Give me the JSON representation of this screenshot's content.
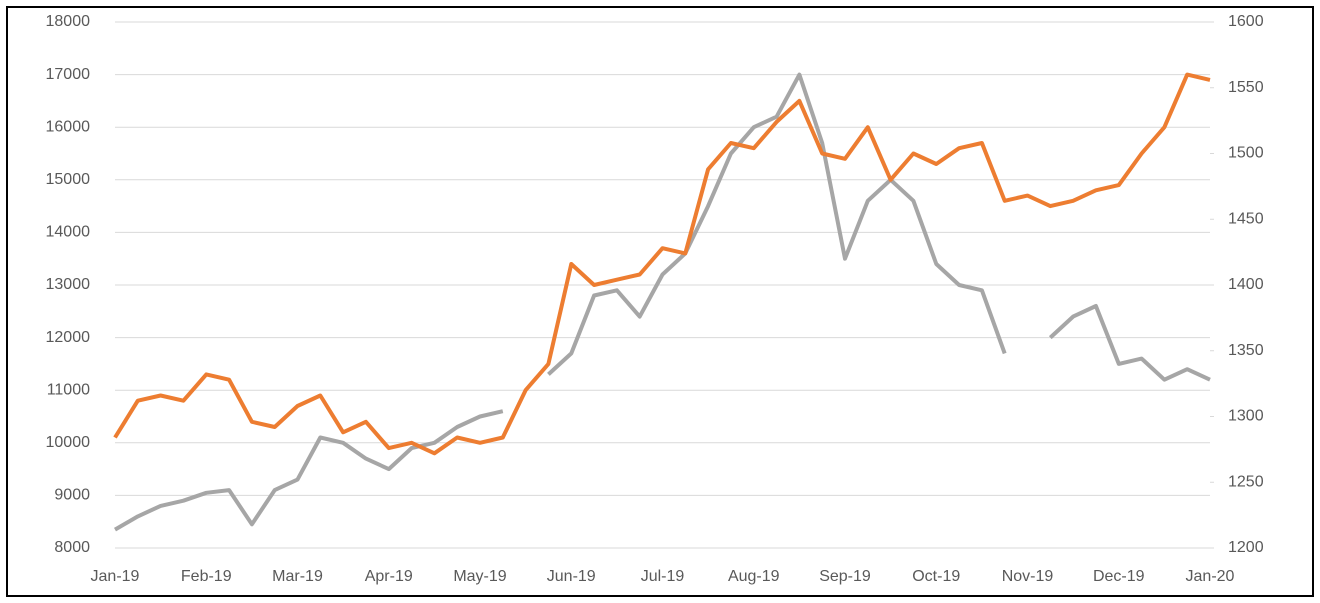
{
  "chart_data": {
    "type": "line",
    "categories": [
      "Jan-19",
      null,
      null,
      null,
      "Feb-19",
      null,
      null,
      null,
      "Mar-19",
      null,
      null,
      null,
      "Apr-19",
      null,
      null,
      null,
      "May-19",
      null,
      null,
      null,
      "Jun-19",
      null,
      null,
      null,
      "Jul-19",
      null,
      null,
      null,
      "Aug-19",
      null,
      null,
      null,
      "Sep-19",
      null,
      null,
      null,
      "Oct-19",
      null,
      null,
      null,
      "Nov-19",
      null,
      null,
      null,
      "Dec-19",
      null,
      null,
      null,
      "Jan-20"
    ],
    "series": [
      {
        "color": "#a6a6a6",
        "axis": "y",
        "values": [
          8350,
          8600,
          8800,
          8900,
          9050,
          9100,
          8450,
          9100,
          9300,
          10100,
          10000,
          9700,
          9500,
          9900,
          10000,
          10300,
          10500,
          10600,
          null,
          11300,
          11700,
          12800,
          12900,
          12400,
          13200,
          13600,
          14500,
          15500,
          16000,
          16200,
          17000,
          15700,
          13500,
          14600,
          15000,
          14600,
          13400,
          13000,
          12900,
          11700,
          null,
          12000,
          12400,
          12600,
          11500,
          11600,
          11200,
          11400,
          11200
        ]
      },
      {
        "color": "#ed7d31",
        "axis": "y2",
        "values": [
          1284,
          1312,
          1316,
          1312,
          1332,
          1328,
          1296,
          1292,
          1308,
          1316,
          1288,
          1296,
          1276,
          1280,
          1272,
          1284,
          1280,
          1284,
          1320,
          1340,
          1416,
          1400,
          1404,
          1408,
          1428,
          1424,
          1488,
          1508,
          1504,
          1524,
          1540,
          1500,
          1496,
          1520,
          1480,
          1500,
          1492,
          1504,
          1508,
          1464,
          1468,
          1460,
          1464,
          1472,
          1476,
          1500,
          1520,
          1560,
          1556
        ]
      }
    ],
    "ylim": [
      8000,
      18000
    ],
    "yticks": [
      8000,
      9000,
      10000,
      11000,
      12000,
      13000,
      14000,
      15000,
      16000,
      17000,
      18000
    ],
    "y2lim": [
      1200,
      1600
    ],
    "y2ticks": [
      1200,
      1250,
      1300,
      1350,
      1400,
      1450,
      1500,
      1550,
      1600
    ],
    "grid": true
  }
}
